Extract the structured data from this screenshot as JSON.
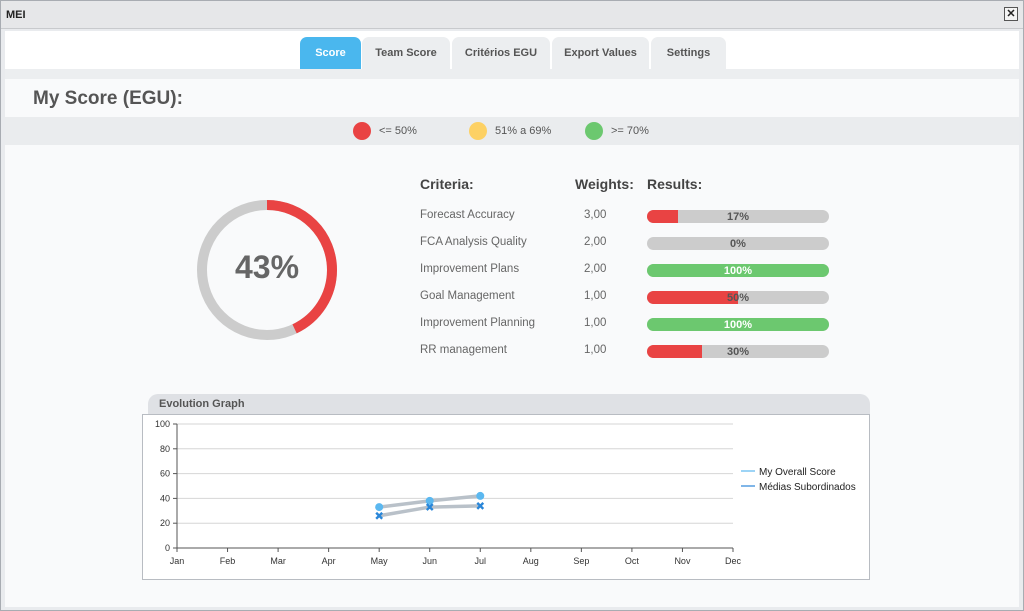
{
  "window": {
    "title": "MEI",
    "close_label": "✕"
  },
  "tabs": [
    {
      "label": "Score",
      "active": true
    },
    {
      "label": "Team Score",
      "active": false
    },
    {
      "label": "Critérios EGU",
      "active": false
    },
    {
      "label": "Export Values",
      "active": false
    },
    {
      "label": "Settings",
      "active": false
    }
  ],
  "page": {
    "title": "My Score (EGU):"
  },
  "legend": [
    {
      "label": "<= 50%",
      "color": "#e94343"
    },
    {
      "label": "51% a 69%",
      "color": "#fdd164"
    },
    {
      "label": ">= 70%",
      "color": "#6cc86f"
    }
  ],
  "score": {
    "overall_label": "43%",
    "overall_value": 43,
    "color_value": "#e94343",
    "color_rest": "#cccccc"
  },
  "criteria_table": {
    "headers": {
      "criteria": "Criteria:",
      "weights": "Weights:",
      "results": "Results:"
    },
    "rows": [
      {
        "criteria": "Forecast Accuracy",
        "weight": "3,00",
        "result_label": "17%",
        "result": 17,
        "color": "#e94343"
      },
      {
        "criteria": "FCA Analysis Quality",
        "weight": "2,00",
        "result_label": "0%",
        "result": 0,
        "color": "#e94343"
      },
      {
        "criteria": "Improvement Plans",
        "weight": "2,00",
        "result_label": "100%",
        "result": 100,
        "color": "#6cc86f"
      },
      {
        "criteria": "Goal Management",
        "weight": "1,00",
        "result_label": "50%",
        "result": 50,
        "color": "#e94343"
      },
      {
        "criteria": "Improvement Planning",
        "weight": "1,00",
        "result_label": "100%",
        "result": 100,
        "color": "#6cc86f"
      },
      {
        "criteria": "RR management",
        "weight": "1,00",
        "result_label": "30%",
        "result": 30,
        "color": "#e94343"
      }
    ]
  },
  "evolution": {
    "title": "Evolution Graph",
    "chart_data": {
      "type": "line",
      "categories": [
        "Jan",
        "Feb",
        "Mar",
        "Apr",
        "May",
        "Jun",
        "Jul",
        "Aug",
        "Sep",
        "Oct",
        "Nov",
        "Dec"
      ],
      "ylim": [
        0,
        100
      ],
      "yticks": [
        0,
        20,
        40,
        60,
        80,
        100
      ],
      "grid": true,
      "legend_position": "right",
      "series": [
        {
          "name": "My Overall Score",
          "values": [
            null,
            null,
            null,
            null,
            33,
            38,
            42,
            null,
            null,
            null,
            null,
            null
          ],
          "color": "#5bb8f0",
          "marker": "circle"
        },
        {
          "name": "Médias Subordinados",
          "values": [
            null,
            null,
            null,
            null,
            26,
            33,
            34,
            null,
            null,
            null,
            null,
            null
          ],
          "color": "#2a86d8",
          "marker": "x"
        }
      ]
    }
  }
}
